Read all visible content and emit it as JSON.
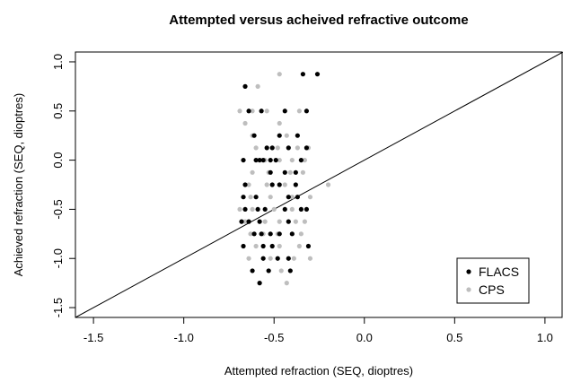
{
  "chart_data": {
    "type": "scatter",
    "title": "Attempted versus acheived refractive outcome",
    "xlabel": "Attempted refraction (SEQ, dioptres)",
    "ylabel": "Achieved refraction (SEQ, dioptres)",
    "xlim": [
      -1.6,
      1.1
    ],
    "ylim": [
      -1.6,
      1.1
    ],
    "xticks": [
      "-1.5",
      "-1.0",
      "-0.5",
      "0.0",
      "0.5",
      "1.0"
    ],
    "yticks": [
      "-1.5",
      "-1.0",
      "-0.5",
      "0.0",
      "0.5",
      "1.0"
    ],
    "reference_line": {
      "slope": 1,
      "intercept": 0,
      "color": "#000000"
    },
    "legend": {
      "position": "bottom-right"
    },
    "series": [
      {
        "name": "FLACS",
        "color": "#000000",
        "points": [
          [
            -0.34,
            0.875
          ],
          [
            -0.26,
            0.875
          ],
          [
            -0.66,
            0.75
          ],
          [
            -0.64,
            0.5
          ],
          [
            -0.57,
            0.5
          ],
          [
            -0.44,
            0.5
          ],
          [
            -0.32,
            0.5
          ],
          [
            -0.61,
            0.25
          ],
          [
            -0.47,
            0.25
          ],
          [
            -0.37,
            0.25
          ],
          [
            -0.54,
            0.125
          ],
          [
            -0.51,
            0.125
          ],
          [
            -0.42,
            0.125
          ],
          [
            -0.32,
            0.125
          ],
          [
            -0.67,
            0.0
          ],
          [
            -0.6,
            0.0
          ],
          [
            -0.58,
            0.0
          ],
          [
            -0.56,
            0.0
          ],
          [
            -0.52,
            0.0
          ],
          [
            -0.49,
            0.0
          ],
          [
            -0.35,
            0.0
          ],
          [
            -0.52,
            -0.125
          ],
          [
            -0.44,
            -0.125
          ],
          [
            -0.38,
            -0.125
          ],
          [
            -0.66,
            -0.25
          ],
          [
            -0.51,
            -0.25
          ],
          [
            -0.47,
            -0.25
          ],
          [
            -0.38,
            -0.25
          ],
          [
            -0.67,
            -0.375
          ],
          [
            -0.6,
            -0.375
          ],
          [
            -0.42,
            -0.375
          ],
          [
            -0.37,
            -0.375
          ],
          [
            -0.66,
            -0.5
          ],
          [
            -0.59,
            -0.5
          ],
          [
            -0.55,
            -0.5
          ],
          [
            -0.44,
            -0.5
          ],
          [
            -0.35,
            -0.5
          ],
          [
            -0.32,
            -0.5
          ],
          [
            -0.68,
            -0.625
          ],
          [
            -0.64,
            -0.625
          ],
          [
            -0.58,
            -0.625
          ],
          [
            -0.42,
            -0.625
          ],
          [
            -0.61,
            -0.75
          ],
          [
            -0.57,
            -0.75
          ],
          [
            -0.52,
            -0.75
          ],
          [
            -0.47,
            -0.75
          ],
          [
            -0.4,
            -0.75
          ],
          [
            -0.67,
            -0.875
          ],
          [
            -0.56,
            -0.875
          ],
          [
            -0.51,
            -0.875
          ],
          [
            -0.31,
            -0.875
          ],
          [
            -0.56,
            -1.0
          ],
          [
            -0.48,
            -1.0
          ],
          [
            -0.42,
            -1.0
          ],
          [
            -0.62,
            -1.125
          ],
          [
            -0.53,
            -1.125
          ],
          [
            -0.41,
            -1.125
          ],
          [
            -0.58,
            -1.25
          ]
        ]
      },
      {
        "name": "CPS",
        "color": "#bebebe",
        "points": [
          [
            -0.47,
            0.875
          ],
          [
            -0.59,
            0.75
          ],
          [
            -0.69,
            0.5
          ],
          [
            -0.62,
            0.5
          ],
          [
            -0.54,
            0.5
          ],
          [
            -0.36,
            0.5
          ],
          [
            -0.66,
            0.375
          ],
          [
            -0.47,
            0.375
          ],
          [
            -0.62,
            0.25
          ],
          [
            -0.43,
            0.25
          ],
          [
            -0.6,
            0.125
          ],
          [
            -0.48,
            0.125
          ],
          [
            -0.37,
            0.125
          ],
          [
            -0.31,
            0.125
          ],
          [
            -0.55,
            0.0
          ],
          [
            -0.47,
            0.0
          ],
          [
            -0.4,
            0.0
          ],
          [
            -0.33,
            0.0
          ],
          [
            -0.62,
            -0.125
          ],
          [
            -0.53,
            -0.125
          ],
          [
            -0.41,
            -0.125
          ],
          [
            -0.34,
            -0.125
          ],
          [
            -0.64,
            -0.25
          ],
          [
            -0.54,
            -0.25
          ],
          [
            -0.44,
            -0.25
          ],
          [
            -0.2,
            -0.25
          ],
          [
            -0.63,
            -0.375
          ],
          [
            -0.52,
            -0.375
          ],
          [
            -0.4,
            -0.375
          ],
          [
            -0.3,
            -0.375
          ],
          [
            -0.69,
            -0.5
          ],
          [
            -0.62,
            -0.5
          ],
          [
            -0.5,
            -0.5
          ],
          [
            -0.4,
            -0.5
          ],
          [
            -0.66,
            -0.625
          ],
          [
            -0.55,
            -0.625
          ],
          [
            -0.47,
            -0.625
          ],
          [
            -0.38,
            -0.625
          ],
          [
            -0.33,
            -0.625
          ],
          [
            -0.63,
            -0.75
          ],
          [
            -0.56,
            -0.75
          ],
          [
            -0.48,
            -0.75
          ],
          [
            -0.35,
            -0.75
          ],
          [
            -0.6,
            -0.875
          ],
          [
            -0.47,
            -0.875
          ],
          [
            -0.36,
            -0.875
          ],
          [
            -0.64,
            -1.0
          ],
          [
            -0.52,
            -1.0
          ],
          [
            -0.39,
            -1.0
          ],
          [
            -0.3,
            -1.0
          ],
          [
            -0.53,
            -1.125
          ],
          [
            -0.46,
            -1.125
          ],
          [
            -0.43,
            -1.25
          ]
        ]
      }
    ]
  }
}
